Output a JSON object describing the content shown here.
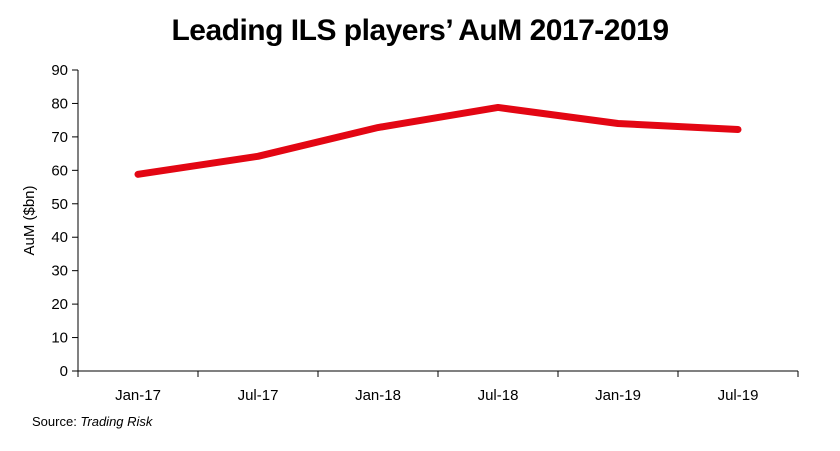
{
  "chart_data": {
    "type": "line",
    "title": "Leading ILS players’ AuM 2017-2019",
    "ylabel": "AuM ($bn)",
    "xlabel": "",
    "categories": [
      "Jan-17",
      "Jul-17",
      "Jan-18",
      "Jul-18",
      "Jan-19",
      "Jul-19"
    ],
    "series": [
      {
        "values": [
          58.8,
          64.2,
          72.8,
          78.8,
          74.0,
          72.2
        ]
      }
    ],
    "ylim": [
      0,
      90
    ],
    "yticks": [
      "0",
      "10",
      "20",
      "30",
      "40",
      "50",
      "60",
      "70",
      "80",
      "90"
    ],
    "grid": false,
    "line_color": "#e30613"
  },
  "source": {
    "label": "Source: ",
    "name": "Trading Risk"
  }
}
